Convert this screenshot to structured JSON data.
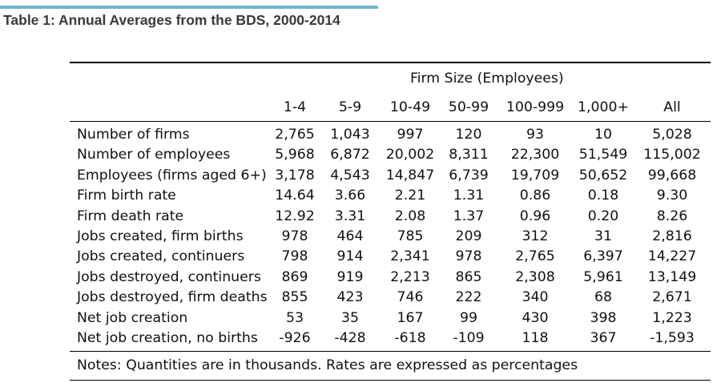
{
  "title": "Table 1: Annual Averages from the BDS, 2000-2014",
  "group_header": "Firm Size (Employees)",
  "columns": [
    "1-4",
    "5-9",
    "10-49",
    "50-99",
    "100-999",
    "1,000+",
    "All"
  ],
  "rows": [
    {
      "label": "Number of firms",
      "values": [
        "2,765",
        "1,043",
        "997",
        "120",
        "93",
        "10",
        "5,028"
      ]
    },
    {
      "label": "Number of employees",
      "values": [
        "5,968",
        "6,872",
        "20,002",
        "8,311",
        "22,300",
        "51,549",
        "115,002"
      ]
    },
    {
      "label": "Employees (firms aged 6+)",
      "values": [
        "3,178",
        "4,543",
        "14,847",
        "6,739",
        "19,709",
        "50,652",
        "99,668"
      ]
    },
    {
      "label": "Firm birth rate",
      "values": [
        "14.64",
        "3.66",
        "2.21",
        "1.31",
        "0.86",
        "0.18",
        "9.30"
      ]
    },
    {
      "label": "Firm death rate",
      "values": [
        "12.92",
        "3.31",
        "2.08",
        "1.37",
        "0.96",
        "0.20",
        "8.26"
      ]
    },
    {
      "label": "Jobs created, firm births",
      "values": [
        "978",
        "464",
        "785",
        "209",
        "312",
        "31",
        "2,816"
      ]
    },
    {
      "label": "Jobs created, continuers",
      "values": [
        "798",
        "914",
        "2,341",
        "978",
        "2,765",
        "6,397",
        "14,227"
      ]
    },
    {
      "label": "Jobs destroyed, continuers",
      "values": [
        "869",
        "919",
        "2,213",
        "865",
        "2,308",
        "5,961",
        "13,149"
      ]
    },
    {
      "label": "Jobs destroyed, firm deaths",
      "values": [
        "855",
        "423",
        "746",
        "222",
        "340",
        "68",
        "2,671"
      ]
    },
    {
      "label": "Net job creation",
      "values": [
        "53",
        "35",
        "167",
        "99",
        "430",
        "398",
        "1,223"
      ]
    },
    {
      "label": "Net job creation, no births",
      "values": [
        "-926",
        "-428",
        "-618",
        "-109",
        "118",
        "367",
        "-1,593"
      ]
    }
  ],
  "notes": "Notes: Quantities are in thousands. Rates are expressed as percentages"
}
